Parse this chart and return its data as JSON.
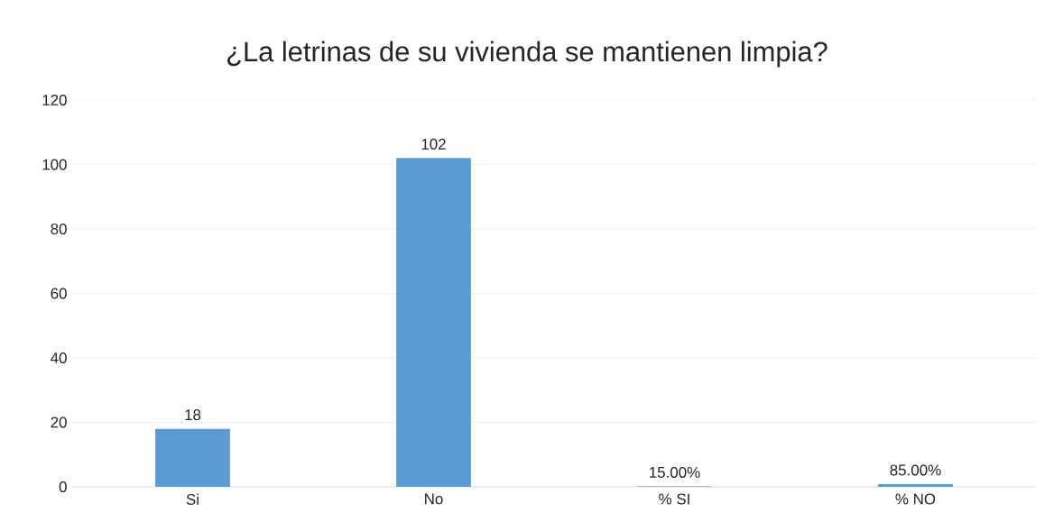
{
  "chart_data": {
    "type": "bar",
    "title": "¿La letrinas de su vivienda se mantienen limpia?",
    "categories": [
      "Si",
      "No",
      "% SI",
      "% NO"
    ],
    "values": [
      18,
      102,
      0.15,
      0.85
    ],
    "value_labels": [
      "18",
      "102",
      "15.00%",
      "85.00%"
    ],
    "color": "#5b9bd5",
    "ylim": [
      0,
      120
    ],
    "yticks": [
      0,
      20,
      40,
      60,
      80,
      100,
      120
    ],
    "grid": "y"
  }
}
